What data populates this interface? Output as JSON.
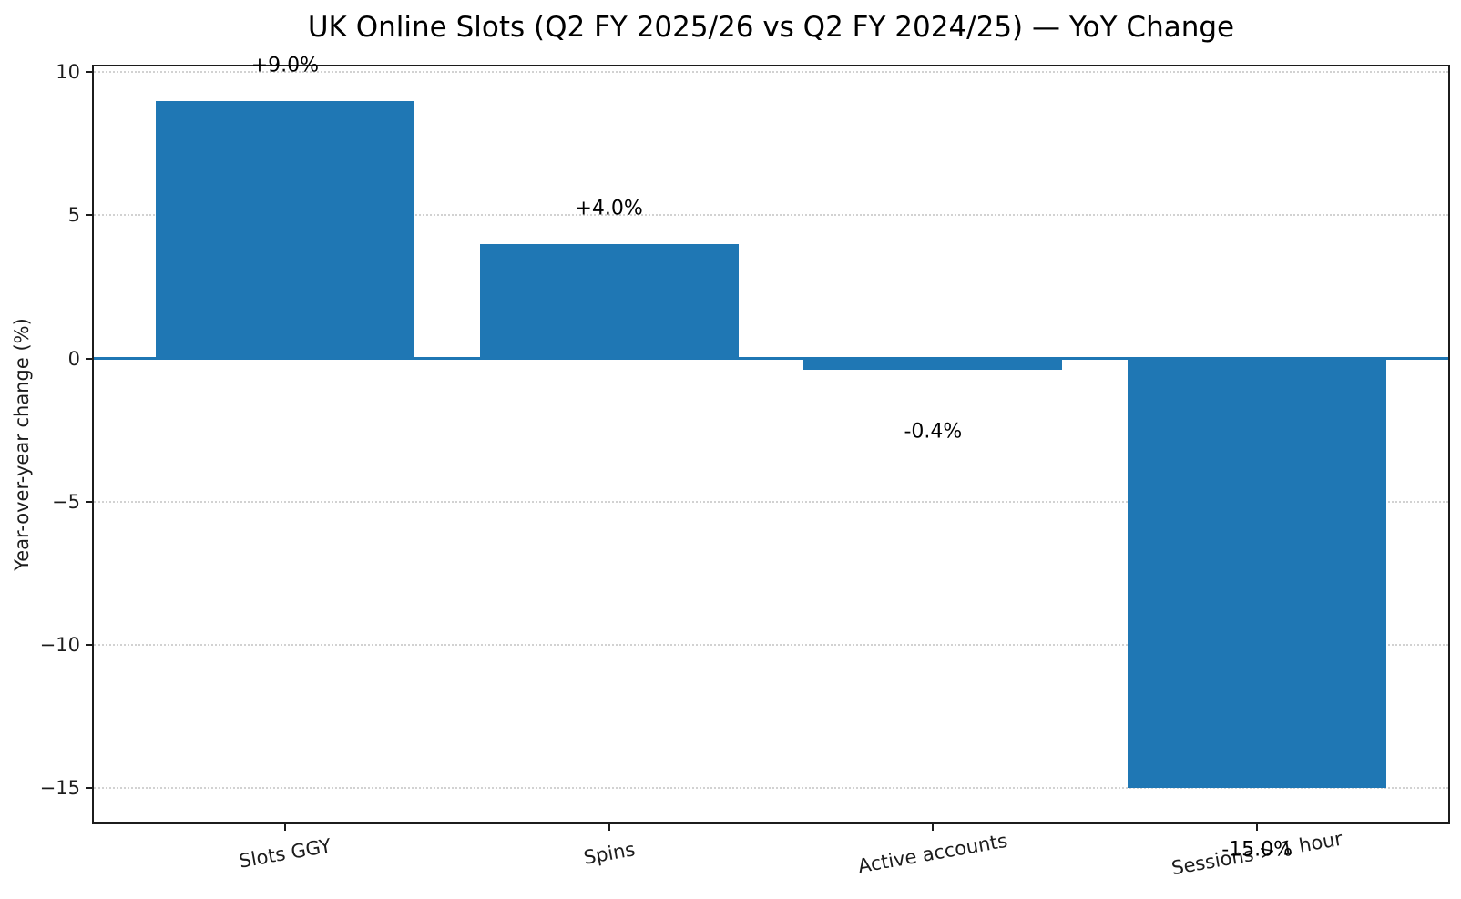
{
  "chart_data": {
    "type": "bar",
    "title": "UK Online Slots (Q2 FY 2025/26 vs Q2 FY 2024/25) — YoY Change",
    "xlabel": "",
    "ylabel": "Year-over-year change (%)",
    "categories": [
      "Slots GGY",
      "Spins",
      "Active accounts",
      "Sessions > 1 hour"
    ],
    "values": [
      9.0,
      4.0,
      -0.4,
      -15.0
    ],
    "value_labels": [
      "+9.0%",
      "+4.0%",
      "-0.4%",
      "-15.0%"
    ],
    "yticks": [
      10,
      5,
      0,
      -5,
      -10,
      -15
    ],
    "ytick_labels": [
      "10",
      "5",
      "0",
      "−5",
      "−10",
      "−15"
    ],
    "ylim": [
      -16.2,
      10.2
    ],
    "grid": "horizontal dotted",
    "legend": "none",
    "x_tick_rotation_deg": 10,
    "colors": {
      "bar": "#1f77b4",
      "zero_line": "#1f77b4",
      "spine": "#1c1c1c",
      "gridline": "#d2d2d2",
      "text": "#1c1c1c",
      "background": "#ffffff"
    }
  }
}
